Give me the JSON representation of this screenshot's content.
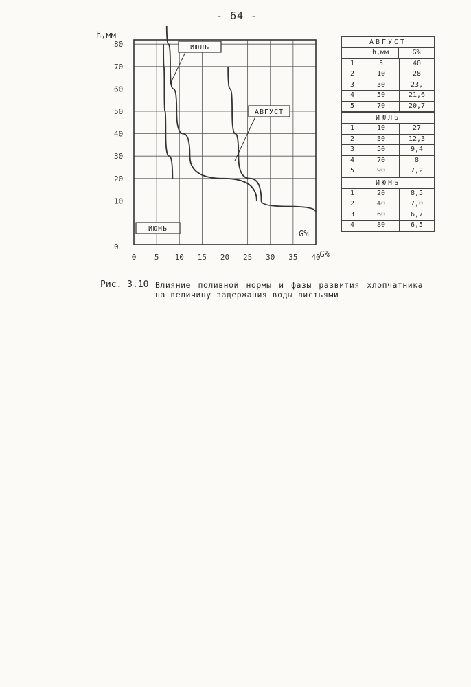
{
  "page_number": "- 64 -",
  "chart": {
    "y_axis_label": "h,мм",
    "x_axis_label": "G%",
    "curve_end_label": "G%",
    "x_ticks": [
      "0",
      "5",
      "10",
      "15",
      "20",
      "25",
      "30",
      "35",
      "40"
    ],
    "y_ticks": [
      "0",
      "10",
      "20",
      "30",
      "40",
      "50",
      "60",
      "70",
      "80"
    ],
    "series_tags": {
      "june": "ИЮНЬ",
      "july": "ИЮЛЬ",
      "august": "АВГУСТ"
    }
  },
  "chart_data": {
    "type": "line",
    "x_label": "G%",
    "y_label": "h,мм",
    "xlim": [
      0,
      40
    ],
    "ylim": [
      0,
      90
    ],
    "grid": true,
    "series": [
      {
        "name": "ИЮНЬ",
        "x": [
          8.5,
          7.0,
          6.7,
          6.5
        ],
        "y": [
          20,
          40,
          60,
          80
        ]
      },
      {
        "name": "ИЮЛЬ",
        "x": [
          27,
          12.3,
          9.4,
          8,
          7.2
        ],
        "y": [
          10,
          30,
          50,
          70,
          90
        ]
      },
      {
        "name": "АВГУСТ",
        "x": [
          40,
          28,
          23,
          21.6,
          20.7
        ],
        "y": [
          5,
          10,
          30,
          50,
          70
        ]
      }
    ]
  },
  "table": {
    "header": {
      "h": "h,мм",
      "g": "G%"
    },
    "groups": [
      {
        "title": "АВГУСТ",
        "rows": [
          {
            "n": "1",
            "h": "5",
            "g": "40"
          },
          {
            "n": "2",
            "h": "10",
            "g": "28"
          },
          {
            "n": "3",
            "h": "30",
            "g": "23,"
          },
          {
            "n": "4",
            "h": "50",
            "g": "21,6"
          },
          {
            "n": "5",
            "h": "70",
            "g": "20,7"
          }
        ]
      },
      {
        "title": "ИЮЛЬ",
        "rows": [
          {
            "n": "1",
            "h": "10",
            "g": "27"
          },
          {
            "n": "2",
            "h": "30",
            "g": "12,3"
          },
          {
            "n": "3",
            "h": "50",
            "g": "9,4"
          },
          {
            "n": "4",
            "h": "70",
            "g": "8"
          },
          {
            "n": "5",
            "h": "90",
            "g": "7,2"
          }
        ]
      },
      {
        "title": "ИЮНЬ",
        "rows": [
          {
            "n": "1",
            "h": "20",
            "g": "8,5"
          },
          {
            "n": "2",
            "h": "40",
            "g": "7,0"
          },
          {
            "n": "3",
            "h": "60",
            "g": "6,7"
          },
          {
            "n": "4",
            "h": "80",
            "g": "6,5"
          }
        ]
      }
    ]
  },
  "caption": {
    "label": "Рис. 3.10",
    "text": "Влияние поливной нормы и фазы развития хлопчатника на величину задержания воды листьями"
  }
}
